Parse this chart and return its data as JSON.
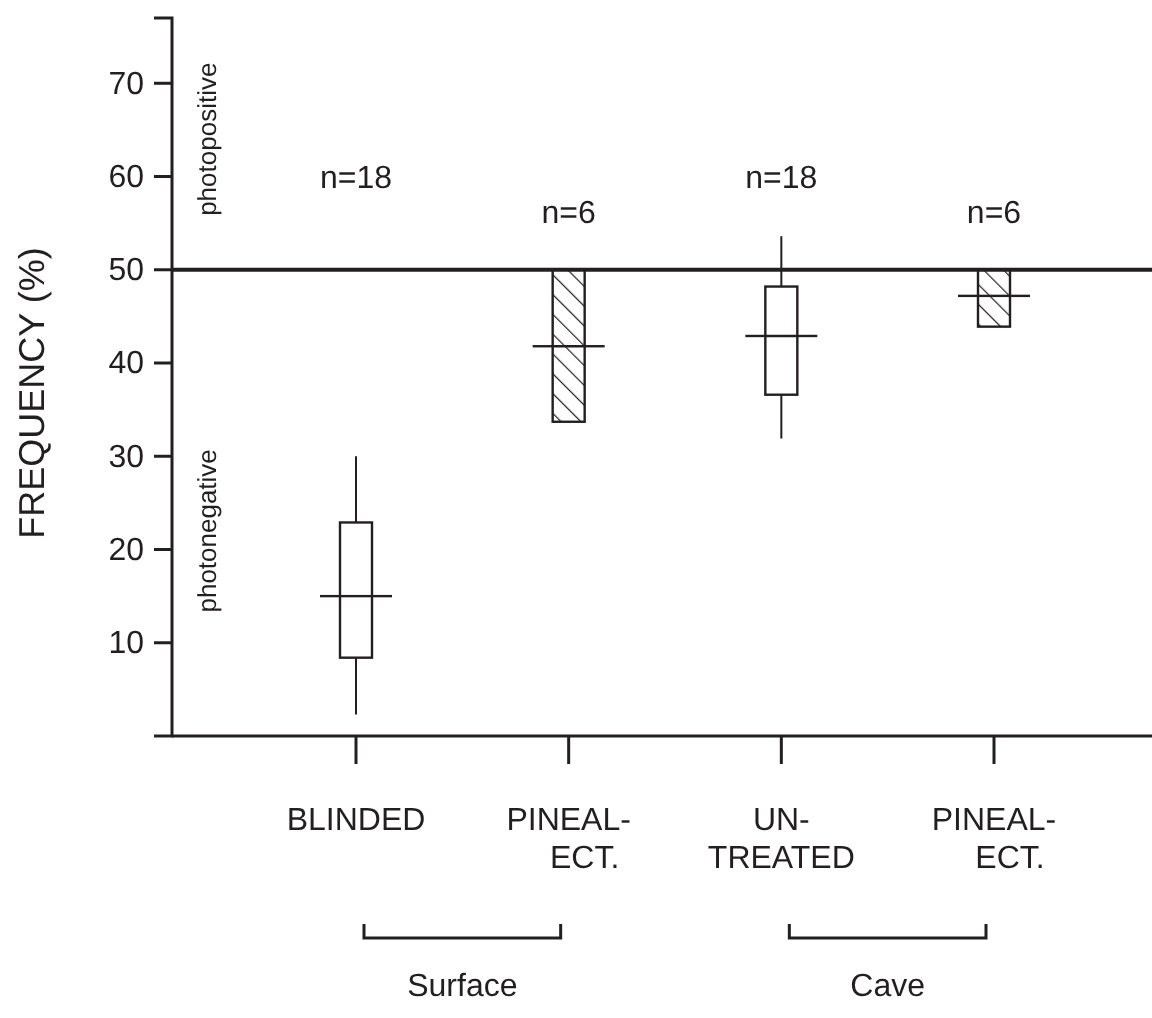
{
  "chart_data": {
    "type": "box",
    "ylabel": "FREQUENCY (%)",
    "categories": [
      "BLINDED",
      "PINEAL-\nECT.",
      "UN-\nTREATED",
      "PINEAL-\nECT."
    ],
    "ylim": [
      0,
      77
    ],
    "yticks": [
      10,
      20,
      30,
      40,
      50,
      60,
      70
    ],
    "series": [
      {
        "color": "#231f20",
        "boxes": [
          {
            "low": 2.3,
            "q1": 8.4,
            "median": 15,
            "q3": 22.9,
            "high": 30
          },
          null,
          {
            "low": 31.9,
            "q1": 36.6,
            "median": 42.9,
            "q3": 48.2,
            "high": 53.6
          },
          null
        ]
      },
      {
        "color": "#231f20",
        "boxes": [
          null,
          {
            "low": 33.7,
            "q1": 33.7,
            "median": 41.8,
            "q3": 50,
            "high": 50
          },
          null,
          {
            "low": 43.9,
            "q1": 43.9,
            "median": 47.2,
            "q3": 50,
            "high": 50
          }
        ]
      }
    ],
    "ref_lines": [
      {
        "axis": "y",
        "value": 50,
        "label": null
      }
    ],
    "annotations": [
      "photopositive",
      "photonegative",
      "n=18",
      "n=6",
      "n=18",
      "n=6",
      "Surface",
      "Cave"
    ],
    "grid": false
  }
}
